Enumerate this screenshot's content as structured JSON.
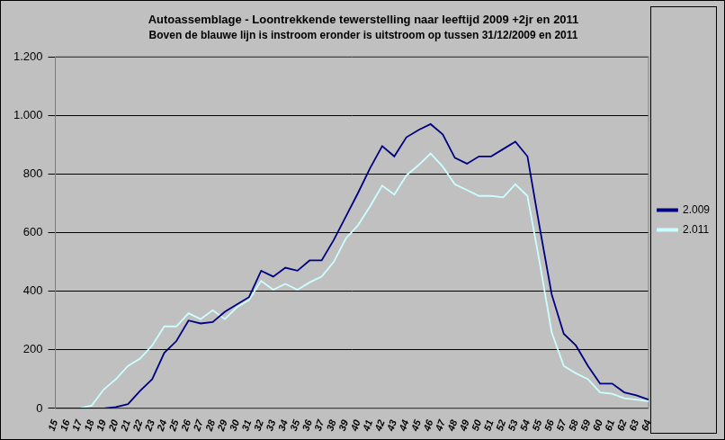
{
  "chart_data": {
    "type": "line",
    "title": "Autoassemblage - Loontrekkende tewerstelling naar leeftijd 2009 +2jr en 2011",
    "subtitle": "Boven de blauwe lijn is instroom eronder is uitstroom op tussen 31/12/2009 en 2011",
    "categories": [
      "15",
      "16",
      "17",
      "18",
      "19",
      "20",
      "21",
      "22",
      "23",
      "24",
      "25",
      "26",
      "27",
      "28",
      "29",
      "30",
      "31",
      "32",
      "33",
      "34",
      "35",
      "36",
      "37",
      "38",
      "39",
      "40",
      "41",
      "42",
      "43",
      "44",
      "45",
      "46",
      "47",
      "48",
      "49",
      "50",
      "51",
      "52",
      "53",
      "54",
      "55",
      "56",
      "57",
      "58",
      "59",
      "60",
      "61",
      "62",
      "63",
      "64"
    ],
    "series": [
      {
        "name": "2.009",
        "color": "#000080",
        "values": [
          0,
          0,
          0,
          0,
          0,
          5,
          15,
          60,
          100,
          190,
          230,
          300,
          290,
          295,
          330,
          355,
          380,
          470,
          450,
          480,
          470,
          505,
          505,
          575,
          655,
          735,
          820,
          895,
          860,
          925,
          950,
          970,
          935,
          855,
          835,
          860,
          860,
          885,
          910,
          860,
          620,
          390,
          255,
          215,
          145,
          85,
          85,
          55,
          45,
          30
        ]
      },
      {
        "name": "2.011",
        "color": "#ccffff",
        "values": [
          0,
          0,
          0,
          10,
          65,
          100,
          145,
          170,
          215,
          280,
          280,
          325,
          305,
          335,
          305,
          345,
          370,
          435,
          405,
          425,
          405,
          430,
          450,
          500,
          580,
          625,
          690,
          760,
          730,
          795,
          830,
          870,
          825,
          765,
          745,
          725,
          725,
          720,
          765,
          725,
          500,
          260,
          145,
          120,
          100,
          55,
          50,
          35,
          30,
          25
        ]
      }
    ],
    "ylim": [
      0,
      1200
    ],
    "yticks": [
      0,
      200,
      400,
      600,
      800,
      {
        "value": 1000,
        "label": "1.000"
      },
      {
        "value": 1200,
        "label": "1.200"
      }
    ],
    "grid": true,
    "legend": "right"
  }
}
